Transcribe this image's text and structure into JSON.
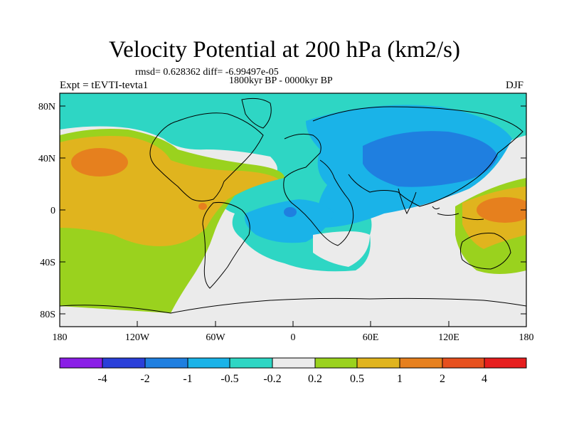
{
  "title": "Velocity Potential at 200 hPa (km2/s)",
  "stats": "rmsd= 0.628362 diff= -6.99497e-05",
  "period": "1800kyr BP - 0000kyr BP",
  "experiment": "Expt = tEVTI-tevta1",
  "season": "DJF",
  "lat_ticks": [
    "80N",
    "40N",
    "0",
    "40S",
    "80S"
  ],
  "lon_ticks": [
    "180",
    "120W",
    "60W",
    "0",
    "60E",
    "120E",
    "180"
  ],
  "colorbar": {
    "labels": [
      "-4",
      "-2",
      "-1",
      "-0.5",
      "-0.2",
      "0.2",
      "0.5",
      "1",
      "2",
      "4"
    ],
    "colors": [
      "#8a1ee6",
      "#2a3fd9",
      "#1f7fe0",
      "#1ab3e8",
      "#2ed6c4",
      "#ebebeb",
      "#9ad21e",
      "#e0b41e",
      "#e6801e",
      "#e6501e",
      "#e61e1e"
    ]
  },
  "chart_data": {
    "type": "map",
    "title": "Velocity Potential at 200 hPa (km2/s)",
    "lon_range": [
      -180,
      180
    ],
    "lat_range": [
      -90,
      90
    ],
    "levels": [
      -4,
      -2,
      -1,
      -0.5,
      -0.2,
      0.2,
      0.5,
      1,
      2,
      4
    ],
    "features": [
      {
        "name": "negative center",
        "lon": 90,
        "lat": 40,
        "level": "-1 to -2"
      },
      {
        "name": "negative center",
        "lon": 0,
        "lat": 0,
        "level": "-1 to -2"
      },
      {
        "name": "positive center",
        "lon": -150,
        "lat": 35,
        "level": "1 to 2"
      },
      {
        "name": "positive center",
        "lon": 150,
        "lat": 5,
        "level": "1 to 2"
      }
    ]
  }
}
